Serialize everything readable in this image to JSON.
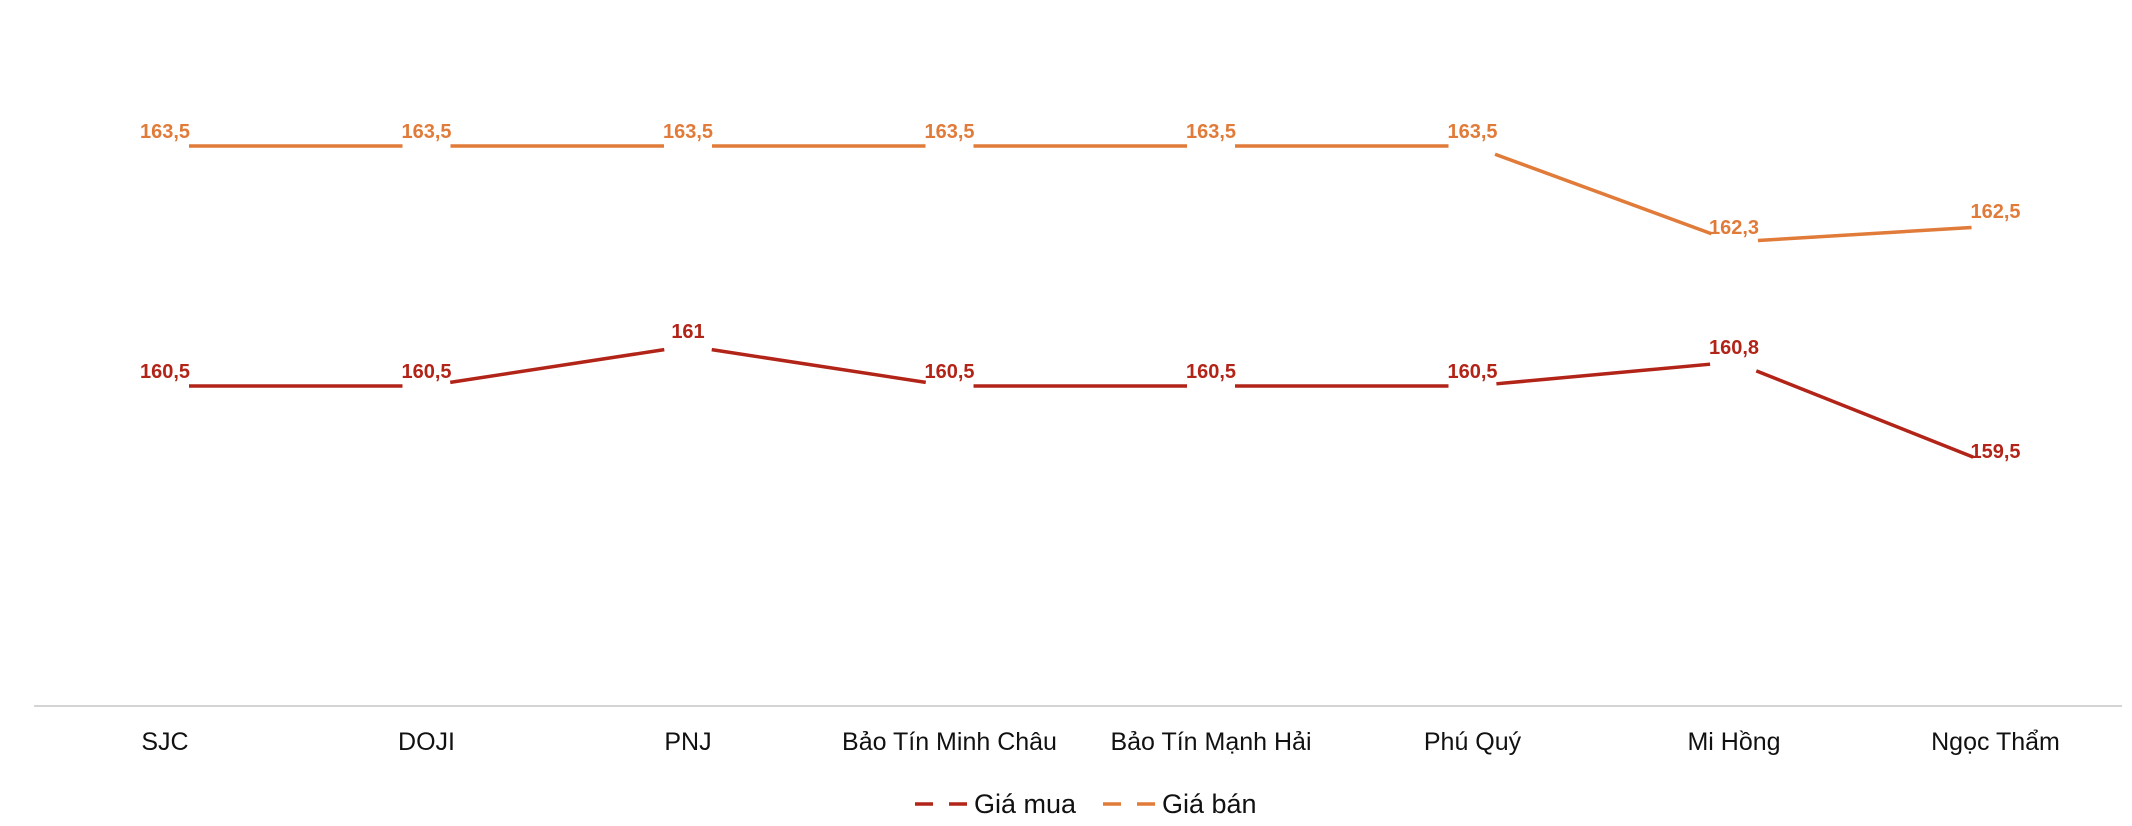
{
  "chart_data": {
    "type": "line",
    "categories": [
      "SJC",
      "DOJI",
      "PNJ",
      "Bảo Tín Minh Châu",
      "Bảo Tín Mạnh Hải",
      "Phú Quý",
      "Mi Hồng",
      "Ngọc Thẩm"
    ],
    "series": [
      {
        "name": "Giá mua",
        "color": "#b22418",
        "values": [
          160.5,
          160.5,
          161,
          160.5,
          160.5,
          160.5,
          160.8,
          159.5
        ],
        "labels": [
          "160,5",
          "160,5",
          "161",
          "160,5",
          "160,5",
          "160,5",
          "160,8",
          "159,5"
        ]
      },
      {
        "name": "Giá bán",
        "color": "#e07b39",
        "values": [
          163.5,
          163.5,
          163.5,
          163.5,
          163.5,
          163.5,
          162.3,
          162.5
        ],
        "labels": [
          "163,5",
          "163,5",
          "163,5",
          "163,5",
          "163,5",
          "163,5",
          "162,3",
          "162,5"
        ]
      }
    ],
    "ylim": [
      156.5,
      164.3
    ],
    "grid": false,
    "legend": "bottom-center",
    "title": "",
    "xlabel": "",
    "ylabel": ""
  }
}
